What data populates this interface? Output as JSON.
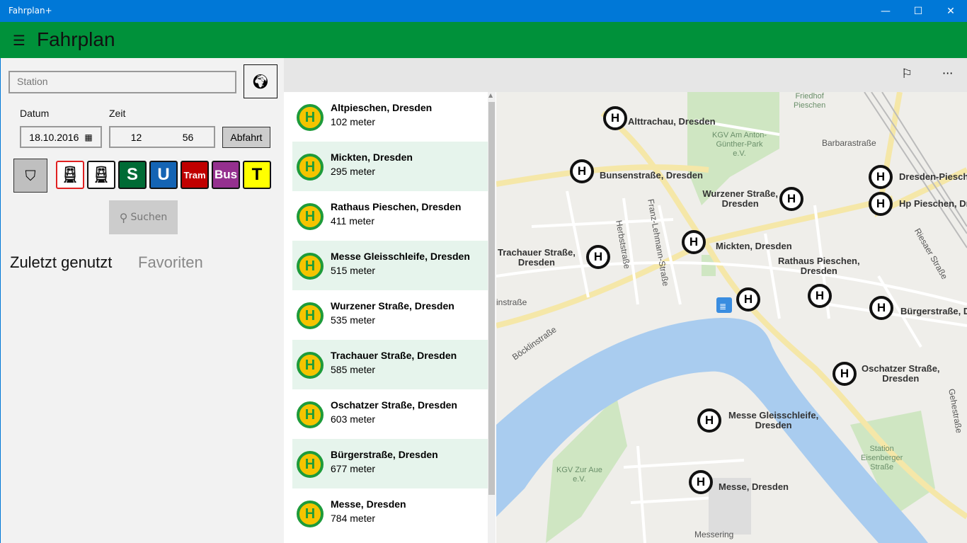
{
  "window": {
    "title": "Fahrplan+",
    "minimize": "—",
    "maximize": "☐",
    "close": "✕"
  },
  "header": {
    "menu_icon": "hamburger-icon",
    "title": "Fahrplan"
  },
  "search": {
    "station_placeholder": "Station",
    "locate_icon": "globe-icon",
    "date_label": "Datum",
    "date_value": "18.10.2016",
    "time_label": "Zeit",
    "hour": "12",
    "minute": "56",
    "mode_button": "Abfahrt",
    "search_button": "Suchen"
  },
  "filters": [
    {
      "label": "",
      "icon": "train-icon",
      "bg": "#ffffff",
      "border": "#e02020"
    },
    {
      "label": "",
      "icon": "train-icon",
      "bg": "#ffffff",
      "border": "#111111"
    },
    {
      "label": "S",
      "bg": "#006b35",
      "color": "#ffffff"
    },
    {
      "label": "U",
      "bg": "#1464b4",
      "color": "#ffffff"
    },
    {
      "label": "Tram",
      "bg": "#c00000",
      "color": "#ffffff"
    },
    {
      "label": "Bus",
      "bg": "#95308f",
      "color": "#ffffff"
    },
    {
      "label": "T",
      "bg": "#ffff00",
      "color": "#000000"
    }
  ],
  "tabs": [
    {
      "label": "Zuletzt genutzt",
      "active": true
    },
    {
      "label": "Favoriten",
      "active": false
    }
  ],
  "toolbar": {
    "flag_icon": "flag-icon",
    "more": "···"
  },
  "stations": [
    {
      "name": "Altpieschen, Dresden",
      "distance": "102 meter"
    },
    {
      "name": "Mickten, Dresden",
      "distance": "295 meter"
    },
    {
      "name": "Rathaus Pieschen, Dresden",
      "distance": "411 meter"
    },
    {
      "name": "Messe Gleisschleife, Dresden",
      "distance": "515 meter"
    },
    {
      "name": "Wurzener Straße, Dresden",
      "distance": "535 meter"
    },
    {
      "name": "Trachauer Straße, Dresden",
      "distance": "585 meter"
    },
    {
      "name": "Oschatzer Straße, Dresden",
      "distance": "603 meter"
    },
    {
      "name": "Bürgerstraße, Dresden",
      "distance": "677 meter"
    },
    {
      "name": "Messe, Dresden",
      "distance": "784 meter"
    }
  ],
  "map": {
    "markers": [
      {
        "name": "alttrachau",
        "label": "Alttrachau, Dresden"
      },
      {
        "name": "bunsenstrasse",
        "label": "Bunsenstraße, Dresden"
      },
      {
        "name": "wurzener",
        "label": "Wurzener Straße,\nDresden"
      },
      {
        "name": "dresden-pieschen",
        "label": "Dresden-Piesch"
      },
      {
        "name": "hp-pieschen",
        "label": "Hp Pieschen, Dres"
      },
      {
        "name": "mickten",
        "label": "Mickten, Dresden"
      },
      {
        "name": "trachauer",
        "label": "Trachauer Straße,\nDresden"
      },
      {
        "name": "altpieschen",
        "label": ""
      },
      {
        "name": "rathaus-pieschen",
        "label": "Rathaus Pieschen,\nDresden"
      },
      {
        "name": "buergerstrasse",
        "label": "Bürgerstraße, D"
      },
      {
        "name": "oschatzer",
        "label": "Oschatzer Straße,\nDresden"
      },
      {
        "name": "messe-gleisschleife",
        "label": "Messe Gleisschleife,\nDresden"
      },
      {
        "name": "messe",
        "label": "Messe, Dresden"
      }
    ],
    "streets": [
      "Barbarastraße",
      "Franz-Lehmann-Straße",
      "Herbststraße",
      "Böcklinstraße",
      "Riesaer Straße",
      "Gehestraße",
      "Messering",
      "instraße"
    ],
    "areas": [
      "Friedhof\nPieschen",
      "KGV Am Anton-\nGünther-Park\ne.V.",
      "KGV Zur Aue\ne.V.",
      "Station\nEisenberger\nStraße"
    ]
  }
}
